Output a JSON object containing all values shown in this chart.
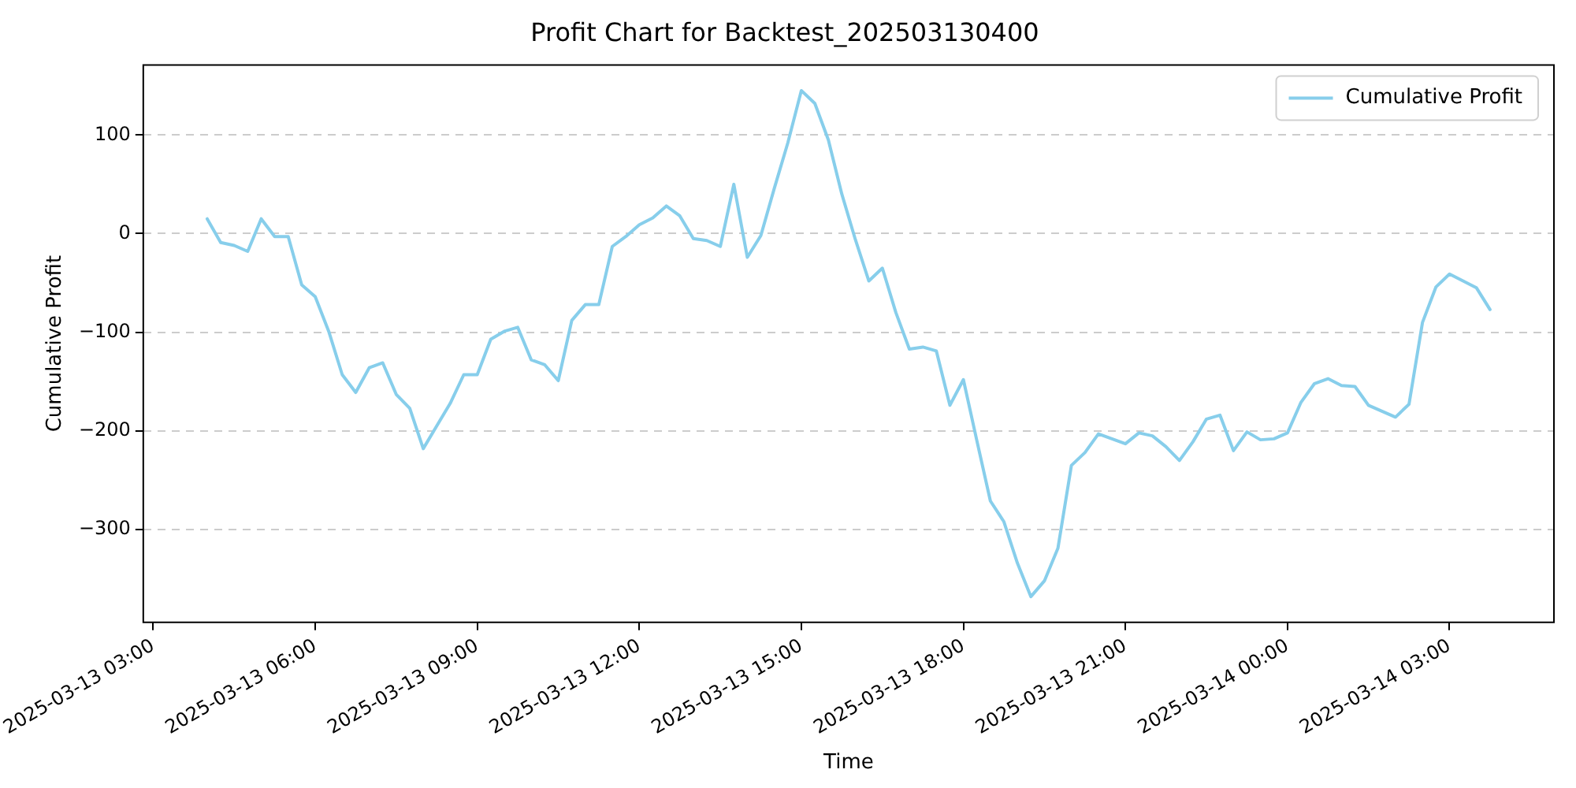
{
  "chart_data": {
    "type": "line",
    "title": "Profit Chart for Backtest_202503130400",
    "xlabel": "Time",
    "ylabel": "Cumulative Profit",
    "legend": "top right",
    "grid": "y",
    "line_style": "solid",
    "marker": "none",
    "x": [
      "2025-03-13T04:00",
      "2025-03-13T04:15",
      "2025-03-13T04:30",
      "2025-03-13T04:45",
      "2025-03-13T05:00",
      "2025-03-13T05:15",
      "2025-03-13T05:30",
      "2025-03-13T05:45",
      "2025-03-13T06:00",
      "2025-03-13T06:15",
      "2025-03-13T06:30",
      "2025-03-13T06:45",
      "2025-03-13T07:00",
      "2025-03-13T07:15",
      "2025-03-13T07:30",
      "2025-03-13T07:45",
      "2025-03-13T08:00",
      "2025-03-13T08:15",
      "2025-03-13T08:30",
      "2025-03-13T08:45",
      "2025-03-13T09:00",
      "2025-03-13T09:15",
      "2025-03-13T09:30",
      "2025-03-13T09:45",
      "2025-03-13T10:00",
      "2025-03-13T10:15",
      "2025-03-13T10:30",
      "2025-03-13T10:45",
      "2025-03-13T11:00",
      "2025-03-13T11:15",
      "2025-03-13T11:30",
      "2025-03-13T11:45",
      "2025-03-13T12:00",
      "2025-03-13T12:15",
      "2025-03-13T12:30",
      "2025-03-13T12:45",
      "2025-03-13T13:00",
      "2025-03-13T13:15",
      "2025-03-13T13:30",
      "2025-03-13T13:45",
      "2025-03-13T14:00",
      "2025-03-13T14:15",
      "2025-03-13T14:30",
      "2025-03-13T14:45",
      "2025-03-13T15:00",
      "2025-03-13T15:15",
      "2025-03-13T15:30",
      "2025-03-13T15:45",
      "2025-03-13T16:00",
      "2025-03-13T16:15",
      "2025-03-13T16:30",
      "2025-03-13T16:45",
      "2025-03-13T17:00",
      "2025-03-13T17:15",
      "2025-03-13T17:30",
      "2025-03-13T17:45",
      "2025-03-13T18:00",
      "2025-03-13T18:15",
      "2025-03-13T18:30",
      "2025-03-13T18:45",
      "2025-03-13T19:00",
      "2025-03-13T19:15",
      "2025-03-13T19:30",
      "2025-03-13T19:45",
      "2025-03-13T20:00",
      "2025-03-13T20:15",
      "2025-03-13T20:30",
      "2025-03-13T20:45",
      "2025-03-13T21:00",
      "2025-03-13T21:15",
      "2025-03-13T21:30",
      "2025-03-13T21:45",
      "2025-03-13T22:00",
      "2025-03-13T22:15",
      "2025-03-13T22:30",
      "2025-03-13T22:45",
      "2025-03-13T23:00",
      "2025-03-13T23:15",
      "2025-03-13T23:30",
      "2025-03-13T23:45",
      "2025-03-14T00:00",
      "2025-03-14T00:15",
      "2025-03-14T00:30",
      "2025-03-14T00:45",
      "2025-03-14T01:00",
      "2025-03-14T01:15",
      "2025-03-14T01:30",
      "2025-03-14T01:45",
      "2025-03-14T02:00",
      "2025-03-14T02:15",
      "2025-03-14T02:30",
      "2025-03-14T02:45",
      "2025-03-14T03:00",
      "2025-03-14T03:15",
      "2025-03-14T03:30",
      "2025-03-14T03:45"
    ],
    "xlim": [
      "2025-03-13T02:49",
      "2025-03-14T04:56"
    ],
    "xticks": [
      {
        "value": "2025-03-13T03:00",
        "label": "2025-03-13 03:00"
      },
      {
        "value": "2025-03-13T06:00",
        "label": "2025-03-13 06:00"
      },
      {
        "value": "2025-03-13T09:00",
        "label": "2025-03-13 09:00"
      },
      {
        "value": "2025-03-13T12:00",
        "label": "2025-03-13 12:00"
      },
      {
        "value": "2025-03-13T15:00",
        "label": "2025-03-13 15:00"
      },
      {
        "value": "2025-03-13T18:00",
        "label": "2025-03-13 18:00"
      },
      {
        "value": "2025-03-13T21:00",
        "label": "2025-03-13 21:00"
      },
      {
        "value": "2025-03-14T00:00",
        "label": "2025-03-14 00:00"
      },
      {
        "value": "2025-03-14T03:00",
        "label": "2025-03-14 03:00"
      }
    ],
    "ylim": [
      -394,
      171
    ],
    "yticks": [
      {
        "value": -300,
        "label": "−300"
      },
      {
        "value": -200,
        "label": "−200"
      },
      {
        "value": -100,
        "label": "−100"
      },
      0,
      100
    ],
    "series": [
      {
        "name": "Cumulative Profit",
        "color": "#87ceeb",
        "values": [
          15,
          -9,
          -12,
          -18,
          15,
          -3,
          -3,
          -52,
          -64,
          -99,
          -143,
          -161,
          -136,
          -131,
          -163,
          -177,
          -218,
          -195,
          -172,
          -143,
          -143,
          -107,
          -99,
          -95,
          -128,
          -133,
          -149,
          -88,
          -72,
          -72,
          -13,
          -3,
          9,
          16,
          28,
          18,
          -5,
          -7,
          -13,
          50,
          -24,
          -2,
          46,
          92,
          145,
          132,
          95,
          40,
          -6,
          -48,
          -35,
          -80,
          -117,
          -115,
          -119,
          -174,
          -148,
          -210,
          -271,
          -292,
          -334,
          -368,
          -352,
          -319,
          -235,
          -222,
          -203,
          -208,
          -213,
          -202,
          -205,
          -216,
          -230,
          -211,
          -188,
          -184,
          -220,
          -201,
          -209,
          -208,
          -202,
          -171,
          -152,
          -147,
          -154,
          -155,
          -174,
          -180,
          -186,
          -173,
          -90,
          -54,
          -41,
          -48,
          -55,
          -77
        ]
      }
    ]
  }
}
